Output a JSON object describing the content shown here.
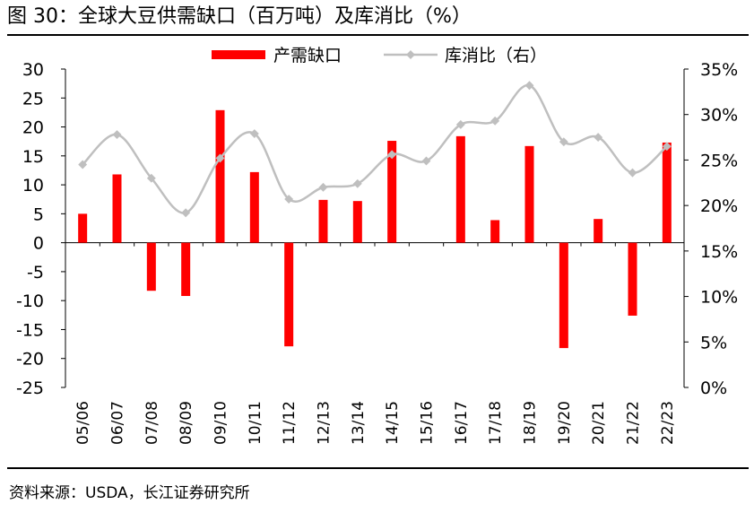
{
  "page": {
    "title": "图 30：全球大豆供需缺口（百万吨）及库消比（%）",
    "source": "资料来源：USDA，长江证券研究所"
  },
  "colors": {
    "bar": "#ff0000",
    "line": "#bfbfbf",
    "axis": "#000000"
  },
  "chart_data": {
    "type": "bar+line",
    "title": "全球大豆供需缺口（百万吨）及库消比（%）",
    "categories": [
      "05/06",
      "06/07",
      "07/08",
      "08/09",
      "09/10",
      "10/11",
      "11/12",
      "12/13",
      "13/14",
      "14/15",
      "15/16",
      "16/17",
      "17/18",
      "18/19",
      "19/20",
      "20/21",
      "21/22",
      "22/23"
    ],
    "series": [
      {
        "name": "产需缺口",
        "type": "bar",
        "axis": "left",
        "values": [
          5,
          11.8,
          -8.3,
          -9.2,
          22.9,
          12.2,
          -17.9,
          7.4,
          7.2,
          17.6,
          0,
          18.4,
          3.9,
          16.7,
          -18.2,
          4.1,
          -12.6,
          17.3
        ]
      },
      {
        "name": "库消比（右）",
        "type": "line",
        "axis": "right",
        "values": [
          24.5,
          27.8,
          23.0,
          19.2,
          25.2,
          27.9,
          20.7,
          22.0,
          22.4,
          25.6,
          24.9,
          28.9,
          29.3,
          33.2,
          27.0,
          27.5,
          23.6,
          26.5
        ]
      }
    ],
    "left_axis": {
      "ylim": [
        -25,
        30
      ],
      "ticks": [
        "30",
        "25",
        "20",
        "15",
        "10",
        "5",
        "0",
        "-5",
        "-10",
        "-15",
        "-20",
        "-25"
      ]
    },
    "right_axis": {
      "ylim": [
        0,
        35
      ],
      "ticks": [
        "35%",
        "30%",
        "25%",
        "20%",
        "15%",
        "10%",
        "5%",
        "0%"
      ]
    },
    "legend": {
      "position": "top-center",
      "entries": [
        "产需缺口",
        "库消比（右）"
      ]
    }
  }
}
